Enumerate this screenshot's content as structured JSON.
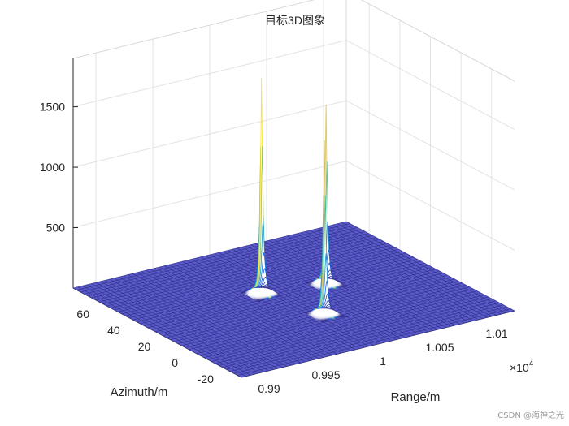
{
  "chart_data": {
    "type": "surface",
    "title": "目标3D图象",
    "xlabel": "Range/m",
    "ylabel": "Azimuth/m",
    "zlabel": "",
    "x_exponent_label": "×10",
    "x_exponent_power": "4",
    "xlim": [
      9880,
      10120
    ],
    "ylim": [
      -35,
      75
    ],
    "zlim": [
      0,
      1900
    ],
    "x_ticks": [
      {
        "value": 9900,
        "label": "0.99"
      },
      {
        "value": 9950,
        "label": "0.995"
      },
      {
        "value": 10000,
        "label": "1"
      },
      {
        "value": 10050,
        "label": "1.005"
      },
      {
        "value": 10100,
        "label": "1.01"
      }
    ],
    "y_ticks": [
      {
        "value": -20,
        "label": "-20"
      },
      {
        "value": 0,
        "label": "0"
      },
      {
        "value": 20,
        "label": "20"
      },
      {
        "value": 40,
        "label": "40"
      },
      {
        "value": 60,
        "label": "60"
      }
    ],
    "z_ticks": [
      {
        "value": 500,
        "label": "500"
      },
      {
        "value": 1000,
        "label": "1000"
      },
      {
        "value": 1500,
        "label": "1500"
      }
    ],
    "grid": true,
    "colormap": "parula",
    "edge_color": "#2f2f8f",
    "floor_color": "#5b5bc8",
    "peaks": [
      {
        "x": 9985,
        "y": 30,
        "z": 1800
      },
      {
        "x": 10000,
        "y": 0,
        "z": 1450
      },
      {
        "x": 10035,
        "y": 25,
        "z": 1500
      }
    ]
  },
  "watermark": "CSDN @海神之光"
}
